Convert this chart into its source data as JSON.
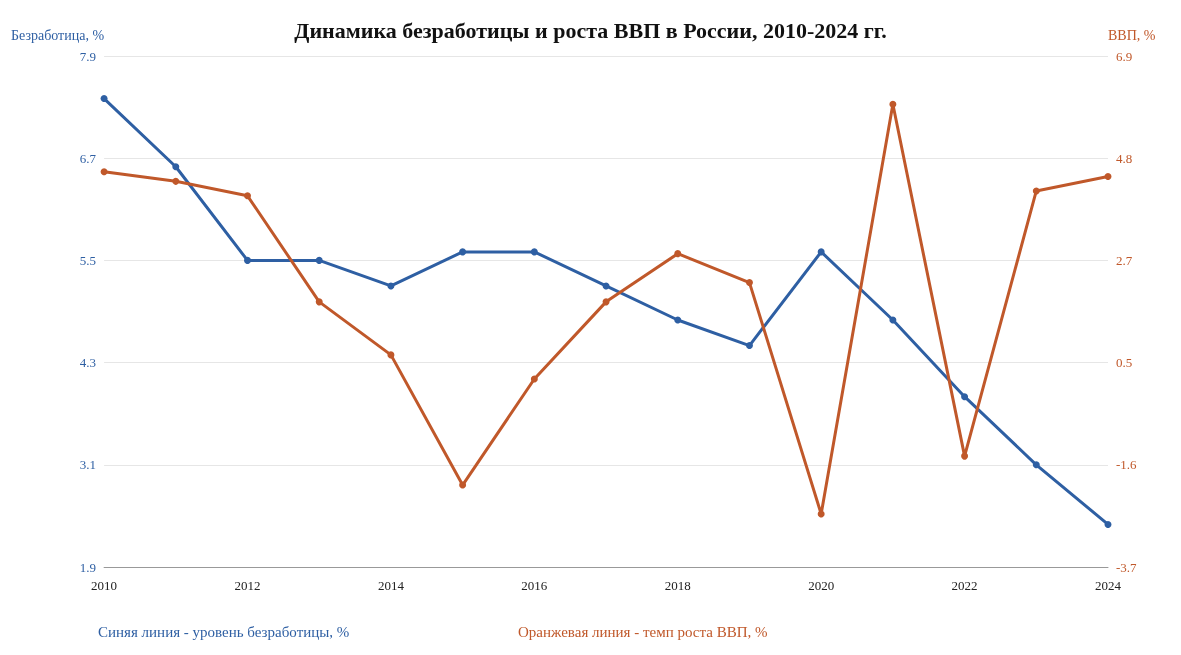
{
  "chart_data": {
    "type": "line",
    "title": "Динамика безработицы и роста ВВП в России, 2010-2024 гг.",
    "ylabel": "Безработица, %",
    "y2label": "ВВП, %",
    "x": [
      2010,
      2011,
      2012,
      2013,
      2014,
      2015,
      2016,
      2017,
      2018,
      2019,
      2020,
      2021,
      2022,
      2023,
      2024
    ],
    "series": [
      {
        "name": null,
        "color": "#2e5fa3",
        "values": [
          7.4,
          6.6,
          5.5,
          5.5,
          5.2,
          5.6,
          5.6,
          5.2,
          4.8,
          4.5,
          5.6,
          4.8,
          3.9,
          3.1,
          2.4
        ]
      },
      {
        "name": null,
        "color": "#c0582a",
        "axis": "y2",
        "values": [
          4.5,
          4.3,
          4.0,
          1.8,
          0.7,
          -2.0,
          0.2,
          1.8,
          2.8,
          2.2,
          -2.6,
          5.9,
          -1.4,
          4.1,
          4.4
        ]
      }
    ],
    "xlim": [
      2010,
      2024
    ],
    "xticks": [
      2010,
      2012,
      2014,
      2016,
      2018,
      2020,
      2022,
      2024
    ],
    "ylim": [
      1.9,
      7.9
    ],
    "yticks": [
      1.9,
      3.1,
      4.3,
      5.5,
      6.7,
      7.9
    ],
    "y2lim": [
      -3.7,
      6.9
    ],
    "y2ticks": [
      {
        "value": -3.7,
        "label": "-3.7"
      },
      {
        "value": -1.58,
        "label": "-1.6"
      },
      {
        "value": 0.54,
        "label": "0.5"
      },
      {
        "value": 2.66,
        "label": "2.7"
      },
      {
        "value": 4.78,
        "label": "4.8"
      },
      {
        "value": 6.9,
        "label": "6.9"
      }
    ],
    "grid": "y",
    "marker": "circle",
    "line_style": "solid",
    "annotations": [
      "Синяя линия - уровень безработицы, %",
      "Оранжевая линия - темп роста ВВП, %"
    ]
  }
}
